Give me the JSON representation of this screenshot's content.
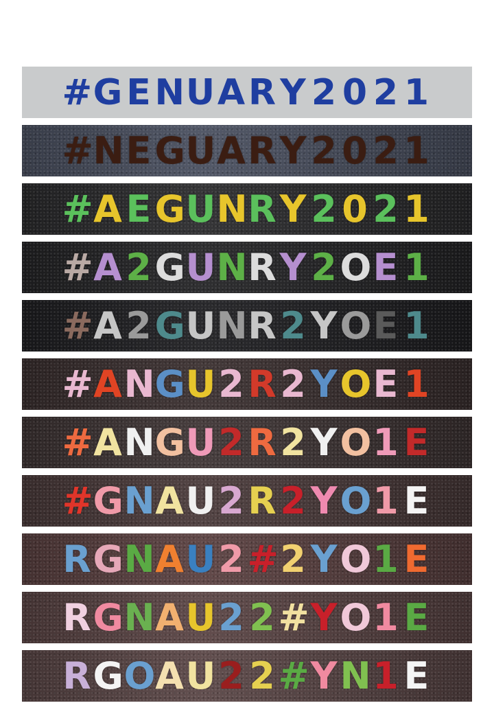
{
  "strips": [
    {
      "background": "#c9cbcc",
      "letters": [
        {
          "char": "#",
          "color": "#1f3ea0"
        },
        {
          "char": "G",
          "color": "#1f3ea0"
        },
        {
          "char": "E",
          "color": "#1f3ea0"
        },
        {
          "char": "N",
          "color": "#1f3ea0"
        },
        {
          "char": "U",
          "color": "#1f3ea0"
        },
        {
          "char": "A",
          "color": "#1f3ea0"
        },
        {
          "char": "R",
          "color": "#1f3ea0"
        },
        {
          "char": "Y",
          "color": "#1f3ea0"
        },
        {
          "char": "2",
          "color": "#1f3ea0"
        },
        {
          "char": "0",
          "color": "#1f3ea0"
        },
        {
          "char": "2",
          "color": "#1f3ea0"
        },
        {
          "char": "1",
          "color": "#1f3ea0"
        }
      ]
    },
    {
      "background": "#4a5060",
      "letters": [
        {
          "char": "#",
          "color": "#3b1d12"
        },
        {
          "char": "N",
          "color": "#3b1d12"
        },
        {
          "char": "E",
          "color": "#3b1d12"
        },
        {
          "char": "G",
          "color": "#3b1d12"
        },
        {
          "char": "U",
          "color": "#3b1d12"
        },
        {
          "char": "A",
          "color": "#3b1d12"
        },
        {
          "char": "R",
          "color": "#3b1d12"
        },
        {
          "char": "Y",
          "color": "#3b1d12"
        },
        {
          "char": "2",
          "color": "#3b1d12"
        },
        {
          "char": "0",
          "color": "#3b1d12"
        },
        {
          "char": "2",
          "color": "#3b1d12"
        },
        {
          "char": "1",
          "color": "#3b1d12"
        }
      ]
    },
    {
      "background": "#2b2b2d",
      "letters": [
        {
          "char": "#",
          "color": "#5bc05c"
        },
        {
          "char": "A",
          "color": "#e7c52c"
        },
        {
          "char": "E",
          "color": "#5bc05c"
        },
        {
          "char": "G",
          "color": "#e7c52c"
        },
        {
          "char": "U",
          "color": "#5bc05c"
        },
        {
          "char": "N",
          "color": "#e7c52c"
        },
        {
          "char": "R",
          "color": "#5bc05c"
        },
        {
          "char": "Y",
          "color": "#e7c52c"
        },
        {
          "char": "2",
          "color": "#5bc05c"
        },
        {
          "char": "0",
          "color": "#e7c52c"
        },
        {
          "char": "2",
          "color": "#5bc05c"
        },
        {
          "char": "1",
          "color": "#e7c52c"
        }
      ]
    },
    {
      "background": "#242426",
      "letters": [
        {
          "char": "#",
          "color": "#b9a9a4"
        },
        {
          "char": "A",
          "color": "#b58fcf"
        },
        {
          "char": "2",
          "color": "#5db047"
        },
        {
          "char": "G",
          "color": "#dcdcdc"
        },
        {
          "char": "U",
          "color": "#b58fcf"
        },
        {
          "char": "N",
          "color": "#5db047"
        },
        {
          "char": "R",
          "color": "#dcdcdc"
        },
        {
          "char": "Y",
          "color": "#b58fcf"
        },
        {
          "char": "2",
          "color": "#5db047"
        },
        {
          "char": "O",
          "color": "#dcdcdc"
        },
        {
          "char": "E",
          "color": "#b58fcf"
        },
        {
          "char": "1",
          "color": "#5db047"
        }
      ]
    },
    {
      "background": "#1f1f22",
      "letters": [
        {
          "char": "#",
          "color": "#8a6a5e"
        },
        {
          "char": "A",
          "color": "#c6c6c6"
        },
        {
          "char": "2",
          "color": "#9a9a9a"
        },
        {
          "char": "G",
          "color": "#4e8a8c"
        },
        {
          "char": "U",
          "color": "#c6c6c6"
        },
        {
          "char": "N",
          "color": "#9a9a9a"
        },
        {
          "char": "R",
          "color": "#c6c6c6"
        },
        {
          "char": "2",
          "color": "#4e8a8c"
        },
        {
          "char": "Y",
          "color": "#c6c6c6"
        },
        {
          "char": "O",
          "color": "#9a9a9a"
        },
        {
          "char": "E",
          "color": "#5a5a5a"
        },
        {
          "char": "1",
          "color": "#4e8a8c"
        }
      ]
    },
    {
      "background": "#3a2f2f",
      "letters": [
        {
          "char": "#",
          "color": "#e9b8d0"
        },
        {
          "char": "A",
          "color": "#e04424"
        },
        {
          "char": "N",
          "color": "#e9b8d0"
        },
        {
          "char": "G",
          "color": "#5b8fc6"
        },
        {
          "char": "U",
          "color": "#e7c52c"
        },
        {
          "char": "2",
          "color": "#e9b8d0"
        },
        {
          "char": "R",
          "color": "#d23a2a"
        },
        {
          "char": "2",
          "color": "#e9b8d0"
        },
        {
          "char": "Y",
          "color": "#5b8fc6"
        },
        {
          "char": "O",
          "color": "#e7c52c"
        },
        {
          "char": "E",
          "color": "#e9b8d0"
        },
        {
          "char": "1",
          "color": "#e04424"
        }
      ]
    },
    {
      "background": "#3e3434",
      "letters": [
        {
          "char": "#",
          "color": "#ee6a40"
        },
        {
          "char": "A",
          "color": "#f1e3a0"
        },
        {
          "char": "N",
          "color": "#f0f0f0"
        },
        {
          "char": "G",
          "color": "#f2c0a0"
        },
        {
          "char": "U",
          "color": "#ef9ab8"
        },
        {
          "char": "2",
          "color": "#c22a2a"
        },
        {
          "char": "R",
          "color": "#ee6a40"
        },
        {
          "char": "2",
          "color": "#f1e3a0"
        },
        {
          "char": "Y",
          "color": "#f0f0f0"
        },
        {
          "char": "O",
          "color": "#f2c0a0"
        },
        {
          "char": "1",
          "color": "#ef9ab8"
        },
        {
          "char": "E",
          "color": "#c22a2a"
        }
      ]
    },
    {
      "background": "#4a3a3a",
      "letters": [
        {
          "char": "#",
          "color": "#e0352a"
        },
        {
          "char": "G",
          "color": "#f09aa8"
        },
        {
          "char": "N",
          "color": "#6aa0d0"
        },
        {
          "char": "A",
          "color": "#f1e3a0"
        },
        {
          "char": "U",
          "color": "#f0f0f0"
        },
        {
          "char": "2",
          "color": "#d8a8d0"
        },
        {
          "char": "R",
          "color": "#e6d050"
        },
        {
          "char": "2",
          "color": "#c8202a"
        },
        {
          "char": "Y",
          "color": "#ef8ab0"
        },
        {
          "char": "O",
          "color": "#6aa0d0"
        },
        {
          "char": "1",
          "color": "#f09aa8"
        },
        {
          "char": "E",
          "color": "#f4f4f4"
        }
      ]
    },
    {
      "background": "#5a4040",
      "letters": [
        {
          "char": "R",
          "color": "#6aa0d0"
        },
        {
          "char": "G",
          "color": "#e6a8b8"
        },
        {
          "char": "N",
          "color": "#5aaa44"
        },
        {
          "char": "A",
          "color": "#f08030"
        },
        {
          "char": "U",
          "color": "#3a80c0"
        },
        {
          "char": "2",
          "color": "#f09aa8"
        },
        {
          "char": "#",
          "color": "#c8202a"
        },
        {
          "char": "2",
          "color": "#f1d070"
        },
        {
          "char": "Y",
          "color": "#6aa0d0"
        },
        {
          "char": "O",
          "color": "#f0c8d8"
        },
        {
          "char": "1",
          "color": "#5aaa44"
        },
        {
          "char": "E",
          "color": "#f06a30"
        }
      ]
    },
    {
      "background": "#5a4444",
      "letters": [
        {
          "char": "R",
          "color": "#f0d0e0"
        },
        {
          "char": "G",
          "color": "#f08aa0"
        },
        {
          "char": "N",
          "color": "#6ab050"
        },
        {
          "char": "A",
          "color": "#f1b070"
        },
        {
          "char": "U",
          "color": "#e7c52c"
        },
        {
          "char": "2",
          "color": "#6aa0d0"
        },
        {
          "char": "2",
          "color": "#80c050"
        },
        {
          "char": "#",
          "color": "#f1e0a0"
        },
        {
          "char": "Y",
          "color": "#c8202a"
        },
        {
          "char": "O",
          "color": "#f0c8d8"
        },
        {
          "char": "1",
          "color": "#f08aa0"
        },
        {
          "char": "E",
          "color": "#5aaa44"
        }
      ]
    },
    {
      "background": "#5a4646",
      "letters": [
        {
          "char": "R",
          "color": "#c8b0d8"
        },
        {
          "char": "G",
          "color": "#f4f4f4"
        },
        {
          "char": "O",
          "color": "#6aa0d0"
        },
        {
          "char": "A",
          "color": "#f4e0b0"
        },
        {
          "char": "U",
          "color": "#f1e3a0"
        },
        {
          "char": "2",
          "color": "#9a1e1e"
        },
        {
          "char": "2",
          "color": "#e6d050"
        },
        {
          "char": "#",
          "color": "#5aaa44"
        },
        {
          "char": "Y",
          "color": "#f08aa0"
        },
        {
          "char": "N",
          "color": "#80c050"
        },
        {
          "char": "1",
          "color": "#c8202a"
        },
        {
          "char": "E",
          "color": "#f4f4f4"
        }
      ]
    }
  ]
}
